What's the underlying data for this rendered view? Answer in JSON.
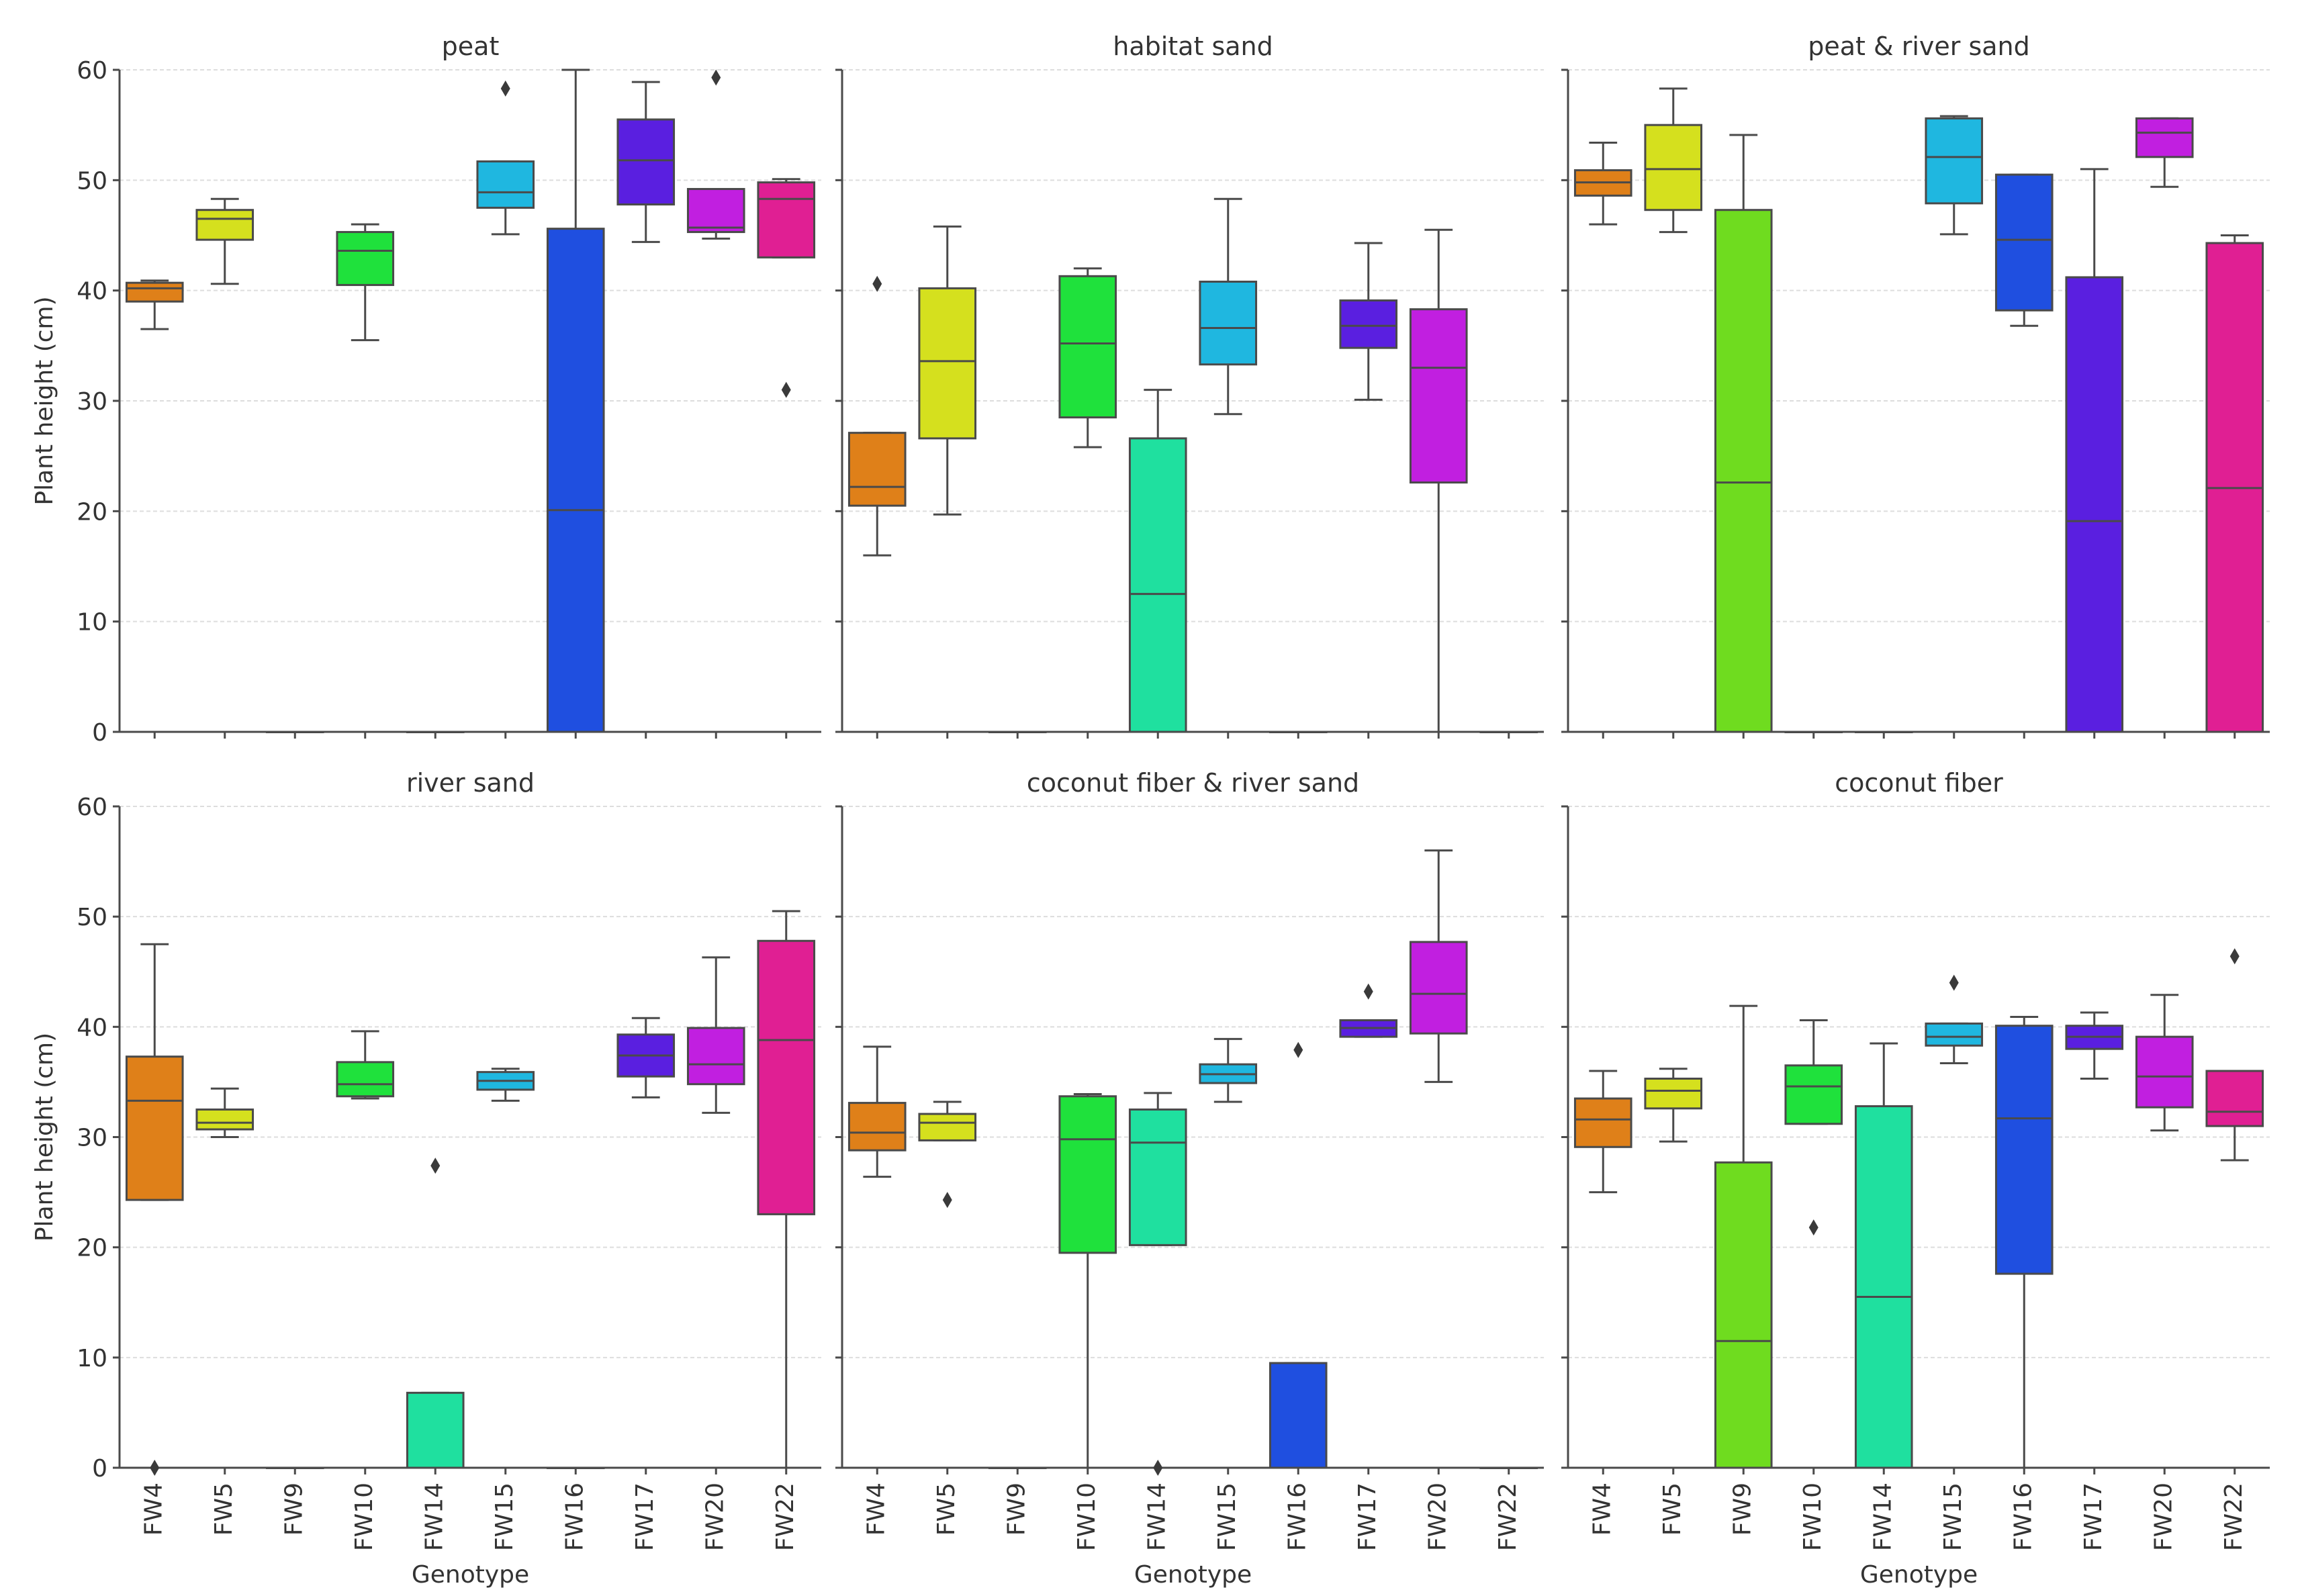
{
  "chart_data": {
    "type": "box",
    "ylabel": "Plant height (cm)",
    "xlabel": "Genotype",
    "ylim": [
      0,
      60
    ],
    "yticks": [
      0,
      10,
      20,
      30,
      40,
      50,
      60
    ],
    "grid": true,
    "categories": [
      "FW4",
      "FW5",
      "FW9",
      "FW10",
      "FW14",
      "FW15",
      "FW16",
      "FW17",
      "FW20",
      "FW22"
    ],
    "colors": [
      "#df8019",
      "#d5e01e",
      "#6fdc1f",
      "#1fe13c",
      "#1fe09f",
      "#1fb7e0",
      "#1f4fe0",
      "#5a1fe0",
      "#c11fe0",
      "#e01f93"
    ],
    "box_fields": [
      "whisker_low",
      "q1",
      "median",
      "q3",
      "whisker_high",
      "outliers"
    ],
    "panels": [
      {
        "title": "peat",
        "boxes": [
          [
            36.5,
            39,
            40.2,
            40.7,
            40.9,
            []
          ],
          [
            40.6,
            44.6,
            46.5,
            47.3,
            48.3,
            []
          ],
          [
            0,
            0,
            0,
            0,
            0,
            []
          ],
          [
            35.5,
            40.5,
            43.6,
            45.3,
            46,
            []
          ],
          [
            0,
            0,
            0,
            0,
            0,
            []
          ],
          [
            45.1,
            47.5,
            48.9,
            51.7,
            51.7,
            [
              58.3
            ]
          ],
          [
            0,
            0,
            20.1,
            45.6,
            60,
            []
          ],
          [
            44.4,
            47.8,
            51.8,
            55.5,
            58.9,
            []
          ],
          [
            44.7,
            45.3,
            45.7,
            49.2,
            49.2,
            [
              59.3
            ]
          ],
          [
            43,
            43,
            48.3,
            49.8,
            50.1,
            [
              31
            ]
          ]
        ]
      },
      {
        "title": "habitat sand",
        "boxes": [
          [
            16,
            20.5,
            22.2,
            27.1,
            27.1,
            [
              40.6
            ]
          ],
          [
            19.7,
            26.6,
            33.6,
            40.2,
            45.8,
            []
          ],
          [
            0,
            0,
            0,
            0,
            0,
            []
          ],
          [
            25.8,
            28.5,
            35.2,
            41.3,
            42,
            []
          ],
          [
            0,
            0,
            12.5,
            26.6,
            31,
            []
          ],
          [
            28.8,
            33.3,
            36.6,
            40.8,
            48.3,
            []
          ],
          [
            0,
            0,
            0,
            0,
            0,
            []
          ],
          [
            30.1,
            34.8,
            36.8,
            39.1,
            44.3,
            []
          ],
          [
            0,
            22.6,
            33,
            38.3,
            45.5,
            []
          ],
          [
            0,
            0,
            0,
            0,
            0,
            []
          ]
        ]
      },
      {
        "title": "peat & river sand",
        "boxes": [
          [
            46,
            48.6,
            49.8,
            50.9,
            53.4,
            []
          ],
          [
            45.3,
            47.3,
            51,
            55,
            58.3,
            []
          ],
          [
            0,
            0,
            22.6,
            47.3,
            54.1,
            []
          ],
          [
            0,
            0,
            0,
            0,
            0,
            []
          ],
          [
            0,
            0,
            0,
            0,
            0,
            []
          ],
          [
            45.1,
            47.9,
            52.1,
            55.6,
            55.8,
            []
          ],
          [
            36.8,
            38.2,
            44.6,
            50.5,
            50.5,
            []
          ],
          [
            0,
            0,
            19.1,
            41.2,
            51,
            []
          ],
          [
            49.4,
            52.1,
            54.3,
            55.6,
            55.6,
            []
          ],
          [
            0,
            0,
            22.1,
            44.3,
            45,
            []
          ]
        ]
      },
      {
        "title": "river sand",
        "boxes": [
          [
            24.3,
            24.3,
            33.3,
            37.3,
            47.5,
            [
              0
            ]
          ],
          [
            30,
            30.7,
            31.3,
            32.5,
            34.4,
            []
          ],
          [
            0,
            0,
            0,
            0,
            0,
            []
          ],
          [
            33.5,
            33.7,
            34.8,
            36.8,
            39.6,
            []
          ],
          [
            0,
            0,
            0,
            6.8,
            6.8,
            [
              27.4
            ]
          ],
          [
            33.3,
            34.3,
            35.1,
            35.9,
            36.2,
            []
          ],
          [
            0,
            0,
            0,
            0,
            0,
            []
          ],
          [
            33.6,
            35.5,
            37.4,
            39.3,
            40.8,
            []
          ],
          [
            32.2,
            34.8,
            36.6,
            39.9,
            46.3,
            []
          ],
          [
            0,
            23,
            38.8,
            47.8,
            50.5,
            []
          ]
        ]
      },
      {
        "title": "coconut fiber & river sand",
        "boxes": [
          [
            26.4,
            28.8,
            30.4,
            33.1,
            38.2,
            []
          ],
          [
            29.7,
            29.7,
            31.3,
            32.1,
            33.2,
            [
              24.3
            ]
          ],
          [
            0,
            0,
            0,
            0,
            0,
            []
          ],
          [
            0,
            19.5,
            29.8,
            33.7,
            33.9,
            []
          ],
          [
            20.2,
            20.2,
            29.5,
            32.5,
            34,
            [
              0
            ]
          ],
          [
            33.2,
            34.9,
            35.7,
            36.6,
            38.9,
            []
          ],
          [
            0,
            0,
            0,
            9.5,
            9.5,
            [
              37.9
            ]
          ],
          [
            39.1,
            39.1,
            39.9,
            40.6,
            40.6,
            [
              43.2
            ]
          ],
          [
            35,
            39.4,
            43,
            47.7,
            56,
            []
          ],
          [
            0,
            0,
            0,
            0,
            0,
            []
          ]
        ]
      },
      {
        "title": "coconut fiber",
        "boxes": [
          [
            25,
            29.1,
            31.6,
            33.5,
            36,
            []
          ],
          [
            29.6,
            32.6,
            34.2,
            35.3,
            36.2,
            []
          ],
          [
            0,
            0,
            11.5,
            27.7,
            41.9,
            []
          ],
          [
            31.2,
            31.2,
            34.6,
            36.5,
            40.6,
            [
              21.8
            ]
          ],
          [
            0,
            0,
            15.5,
            32.8,
            38.5,
            []
          ],
          [
            36.7,
            38.3,
            39.1,
            40.3,
            40.3,
            [
              44
            ]
          ],
          [
            0,
            17.6,
            31.7,
            40.1,
            40.9,
            []
          ],
          [
            35.3,
            38,
            39.1,
            40.1,
            41.3,
            []
          ],
          [
            30.6,
            32.7,
            35.5,
            39.1,
            42.9,
            []
          ],
          [
            27.9,
            31,
            32.3,
            36,
            36,
            [
              46.4
            ]
          ]
        ]
      }
    ]
  }
}
